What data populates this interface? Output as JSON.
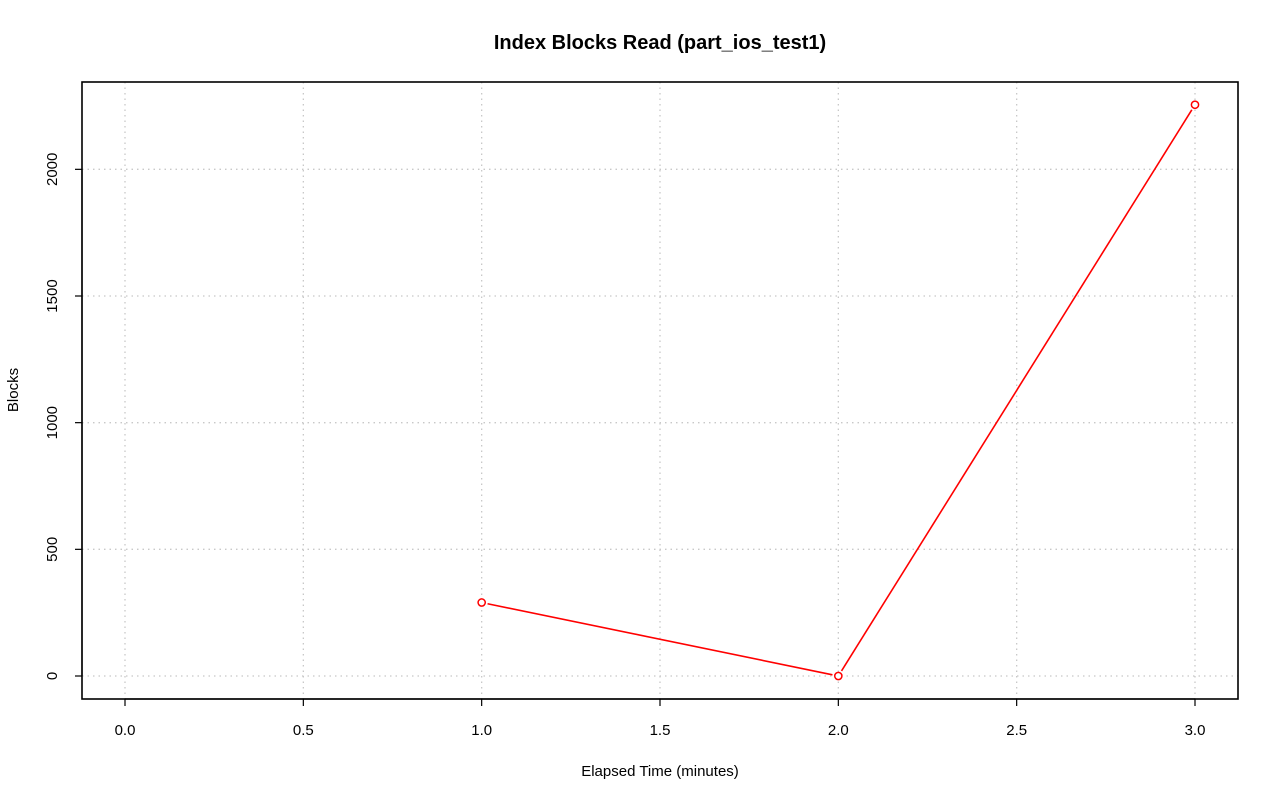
{
  "chart_data": {
    "type": "line",
    "title": "Index Blocks Read (part_ios_test1)",
    "xlabel": "Elapsed Time (minutes)",
    "ylabel": "Blocks",
    "xlim": [
      0,
      3
    ],
    "ylim": [
      0,
      2250
    ],
    "x_ticks": [
      "0.0",
      "0.5",
      "1.0",
      "1.5",
      "2.0",
      "2.5",
      "3.0"
    ],
    "y_ticks": [
      "0",
      "500",
      "1000",
      "1500",
      "2000"
    ],
    "grid": true,
    "series": [
      {
        "color": "#ff0000",
        "marker": "open-circle",
        "x": [
          1.0,
          2.0,
          3.0
        ],
        "y": [
          290,
          0,
          2255
        ]
      }
    ]
  }
}
